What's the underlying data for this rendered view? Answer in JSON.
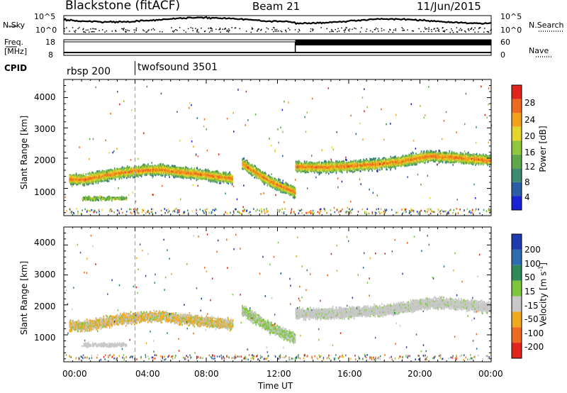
{
  "header": {
    "title": "Blackstone (fitACF)",
    "beam": "Beam 21",
    "date": "11/Jun/2015"
  },
  "noise_panel": {
    "left_label": "N.Sky",
    "right_label": "N.Search",
    "left_ticks": [
      "10^5",
      "10^0"
    ],
    "right_ticks": [
      "10^5",
      "10^0"
    ]
  },
  "freq_panel": {
    "left_label_line1": "Freq.",
    "left_label_line2": "[MHz]",
    "left_ticks": [
      "18",
      "8"
    ],
    "right_ticks": [
      "60",
      "0"
    ],
    "right_label": "Nave",
    "nave_step_time_hours": 13.0
  },
  "cpid_panel": {
    "label": "CPID",
    "segments": [
      {
        "name": "rbsp 200",
        "start_hours": 0
      },
      {
        "name": "twofsound 3501",
        "start_hours": 4.0
      }
    ]
  },
  "x_axis": {
    "label": "Time UT",
    "ticks": [
      "00:00",
      "04:00",
      "08:00",
      "12:00",
      "16:00",
      "20:00",
      "00:00"
    ],
    "range_hours": [
      0,
      24
    ]
  },
  "chart_data": [
    {
      "type": "heatmap",
      "ylabel": "Slant Range [km]",
      "yticks": [
        "1000",
        "2000",
        "3000",
        "4000"
      ],
      "ylim": [
        100,
        4600
      ],
      "colorbar": {
        "label": "Power [dB]",
        "ticks": [
          "4",
          "8",
          "12",
          "16",
          "20",
          "24",
          "28"
        ],
        "range": [
          0,
          30
        ],
        "colors": [
          "#1a22d6",
          "#2a5fa6",
          "#3d8a6e",
          "#5ea84a",
          "#8fc63a",
          "#e4d62a",
          "#f2a21c",
          "#ee6a1e",
          "#e0241c"
        ]
      },
      "echo_bands": [
        {
          "name": "main-band",
          "times": [
            0.3,
            1.0,
            2.0,
            3.0,
            3.8,
            4.5,
            5.5,
            6.5,
            7.5,
            8.5,
            9.5
          ],
          "ranges": [
            1300,
            1260,
            1380,
            1480,
            1540,
            1580,
            1600,
            1520,
            1460,
            1380,
            1300
          ],
          "power": 16
        },
        {
          "name": "descending-band",
          "times": [
            10.0,
            10.8,
            11.6,
            12.4,
            13.0
          ],
          "ranges": [
            1800,
            1500,
            1200,
            1000,
            850
          ],
          "power": 18
        },
        {
          "name": "late-band",
          "times": [
            13.0,
            14.5,
            16.0,
            17.5,
            19.0,
            20.5,
            22.0,
            24.0
          ],
          "ranges": [
            1700,
            1680,
            1720,
            1780,
            1880,
            2050,
            2000,
            1900
          ],
          "power": 14
        }
      ]
    },
    {
      "type": "heatmap",
      "ylabel": "Slant Range [km]",
      "yticks": [
        "1000",
        "2000",
        "3000",
        "4000"
      ],
      "ylim": [
        100,
        4600
      ],
      "colorbar": {
        "label": "Velocity [m s^-1]",
        "ticks": [
          "200",
          "100",
          "50",
          "15",
          "-15",
          "-50",
          "-100",
          "-200"
        ],
        "colors": [
          "#1f3bb0",
          "#2d6cb0",
          "#2f8a5a",
          "#7cc63c",
          "#c8c8c8",
          "#f0a81e",
          "#ee6a1e",
          "#e0241c"
        ]
      },
      "echo_bands": [
        {
          "name": "main-band",
          "times": [
            0.3,
            1.0,
            2.0,
            3.0,
            3.8,
            4.5,
            5.5,
            6.5,
            7.5,
            8.5,
            9.5
          ],
          "ranges": [
            1300,
            1260,
            1380,
            1480,
            1540,
            1580,
            1600,
            1520,
            1460,
            1380,
            1300
          ],
          "velocity": -15
        },
        {
          "name": "descending-band",
          "times": [
            10.0,
            10.8,
            11.6,
            12.4,
            13.0
          ],
          "ranges": [
            1800,
            1500,
            1200,
            1000,
            850
          ],
          "velocity": 15
        },
        {
          "name": "late-band",
          "times": [
            13.0,
            14.5,
            16.0,
            17.5,
            19.0,
            20.5,
            22.0,
            24.0
          ],
          "ranges": [
            1700,
            1680,
            1720,
            1780,
            1880,
            2050,
            2000,
            1900
          ],
          "velocity": 0
        }
      ]
    }
  ]
}
